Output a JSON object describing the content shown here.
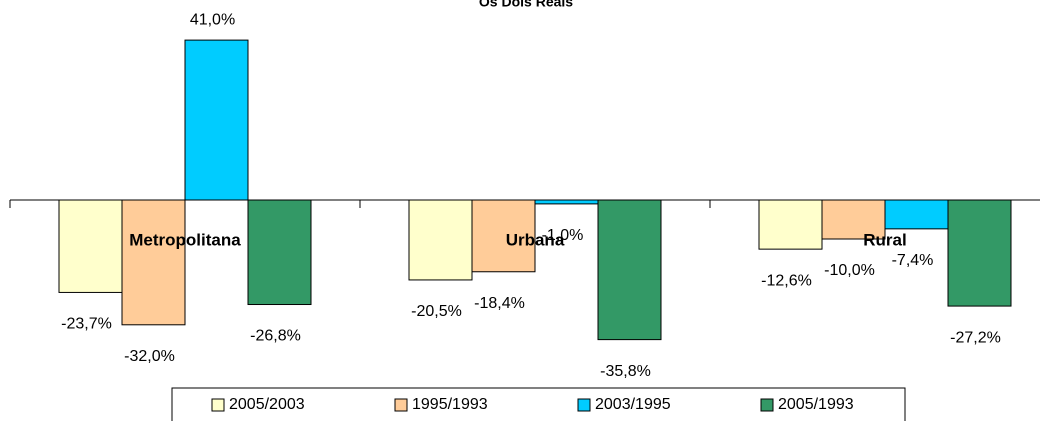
{
  "chart_data": {
    "type": "bar",
    "title": "Os Dois Reais",
    "categories": [
      "Metropolitana",
      "Urbana",
      "Rural"
    ],
    "series": [
      {
        "name": "2005/2003",
        "color": "#ffffcc",
        "values": [
          -23.7,
          -20.5,
          -12.6
        ],
        "value_labels": [
          "-23,7%",
          "-20,5%",
          "-12,6%"
        ]
      },
      {
        "name": "1995/1993",
        "color": "#ffcc99",
        "values": [
          -32.0,
          -18.4,
          -10.0
        ],
        "value_labels": [
          "-32,0%",
          "-18,4%",
          "-10,0%"
        ]
      },
      {
        "name": "2003/1995",
        "color": "#00ccff",
        "values": [
          41.0,
          -1.0,
          -7.4
        ],
        "value_labels": [
          "41,0%",
          "-1,0%",
          "-7,4%"
        ]
      },
      {
        "name": "2005/1993",
        "color": "#339966",
        "values": [
          -26.8,
          -35.8,
          -27.2
        ],
        "value_labels": [
          "-26,8%",
          "-35,8%",
          "-27,2%"
        ]
      }
    ],
    "ylim": [
      -40,
      50
    ],
    "legend": "bottom"
  }
}
